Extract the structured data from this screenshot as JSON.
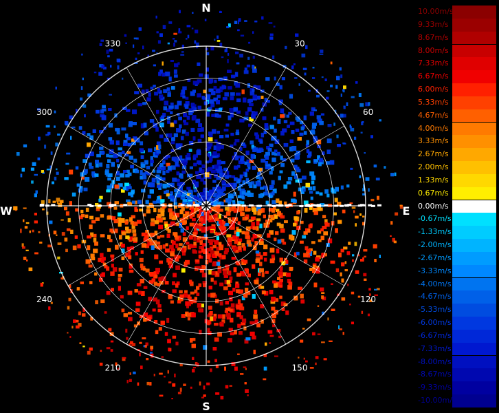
{
  "radar": {
    "compass": {
      "north": "N",
      "south": "S",
      "east": "E",
      "west": "W"
    },
    "angle_labels": [
      {
        "deg": 30,
        "text": "30"
      },
      {
        "deg": 60,
        "text": "60"
      },
      {
        "deg": 120,
        "text": "120"
      },
      {
        "deg": 150,
        "text": "150"
      },
      {
        "deg": 210,
        "text": "210"
      },
      {
        "deg": 240,
        "text": "240"
      },
      {
        "deg": 300,
        "text": "300"
      },
      {
        "deg": 330,
        "text": "330"
      }
    ],
    "range_rings": 5,
    "colors": {
      "rings": "#ffffff",
      "background": "#000000"
    }
  },
  "legend": {
    "unit": "m/s",
    "entries": [
      {
        "label": "10.00m/s",
        "color": "#8b0000",
        "text_color": "#8b0000"
      },
      {
        "label": "9.33m/s",
        "color": "#9b0000",
        "text_color": "#9b0000"
      },
      {
        "label": "8.67m/s",
        "color": "#b00000",
        "text_color": "#b00000"
      },
      {
        "label": "8.00m/s",
        "color": "#c80000",
        "text_color": "#c80000"
      },
      {
        "label": "7.33m/s",
        "color": "#e00000",
        "text_color": "#e00000"
      },
      {
        "label": "6.67m/s",
        "color": "#f00000",
        "text_color": "#f00000"
      },
      {
        "label": "6.00m/s",
        "color": "#ff2000",
        "text_color": "#ff2000"
      },
      {
        "label": "5.33m/s",
        "color": "#ff4000",
        "text_color": "#ff4000"
      },
      {
        "label": "4.67m/s",
        "color": "#ff6000",
        "text_color": "#ff6000"
      },
      {
        "label": "4.00m/s",
        "color": "#ff7a00",
        "text_color": "#ff7a00"
      },
      {
        "label": "3.33m/s",
        "color": "#ff9000",
        "text_color": "#ff9000"
      },
      {
        "label": "2.67m/s",
        "color": "#ffa800",
        "text_color": "#ffa800"
      },
      {
        "label": "2.00m/s",
        "color": "#ffc000",
        "text_color": "#ffc000"
      },
      {
        "label": "1.33m/s",
        "color": "#ffd800",
        "text_color": "#ffd800"
      },
      {
        "label": "0.67m/s",
        "color": "#ffee00",
        "text_color": "#ffee00"
      },
      {
        "label": "0.00m/s",
        "color": "#ffffff",
        "text_color": "#ffffff"
      },
      {
        "label": "-0.67m/s",
        "color": "#00e0ff",
        "text_color": "#00e0ff"
      },
      {
        "label": "-1.33m/s",
        "color": "#00ccff",
        "text_color": "#00ccff"
      },
      {
        "label": "-2.00m/s",
        "color": "#00b4ff",
        "text_color": "#00b4ff"
      },
      {
        "label": "-2.67m/s",
        "color": "#009cff",
        "text_color": "#009cff"
      },
      {
        "label": "-3.33m/s",
        "color": "#0088ff",
        "text_color": "#0088ff"
      },
      {
        "label": "-4.00m/s",
        "color": "#0074f0",
        "text_color": "#0074f0"
      },
      {
        "label": "-4.67m/s",
        "color": "#0060e8",
        "text_color": "#0060e8"
      },
      {
        "label": "-5.33m/s",
        "color": "#004ce0",
        "text_color": "#004ce0"
      },
      {
        "label": "-6.00m/s",
        "color": "#0038e0",
        "text_color": "#0038e0"
      },
      {
        "label": "-6.67m/s",
        "color": "#0028d8",
        "text_color": "#0028d8"
      },
      {
        "label": "-7.33m/s",
        "color": "#0018d0",
        "text_color": "#0018d0"
      },
      {
        "label": "-8.00m/s",
        "color": "#0010c0",
        "text_color": "#0010c0"
      },
      {
        "label": "-8.67m/s",
        "color": "#0008b0",
        "text_color": "#0008b0"
      },
      {
        "label": "-9.33m/s",
        "color": "#0000a0",
        "text_color": "#0000a0"
      },
      {
        "label": "-10.00m/s",
        "color": "#000090",
        "text_color": "#000090"
      }
    ]
  }
}
